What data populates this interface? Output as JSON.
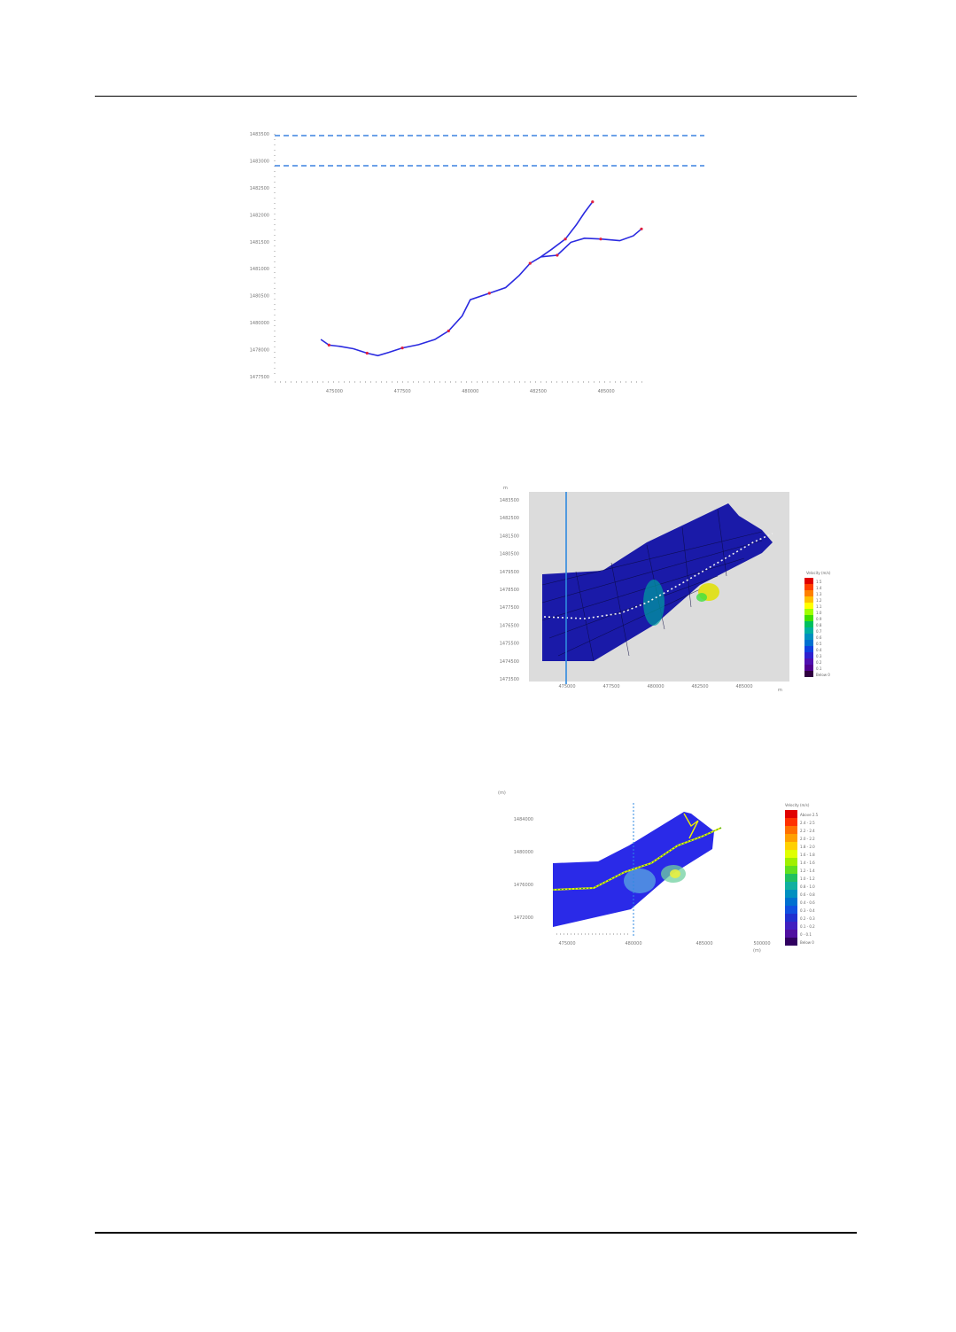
{
  "figures": [
    {
      "id": "fig1",
      "chart_data": {
        "type": "line",
        "title": "",
        "xlabel": "",
        "ylabel": "",
        "x_tick_labels": [
          "475000",
          "477500",
          "480000",
          "482500",
          "485000"
        ],
        "y_tick_labels": [
          "1477500",
          "1478000",
          "1480000",
          "1480500",
          "1481000",
          "1481500",
          "1482000",
          "1482500",
          "1483000",
          "1483500"
        ],
        "reference_lines": [
          "upper limit",
          "lower limit"
        ],
        "series": [
          {
            "values": [
              [
                474500,
                1478420
              ],
              [
                474800,
                1478280
              ],
              [
                475200,
                1478250
              ],
              [
                475700,
                1478190
              ],
              [
                476200,
                1478080
              ],
              [
                476600,
                1478020
              ],
              [
                477000,
                1478100
              ],
              [
                477500,
                1478210
              ],
              [
                478100,
                1478290
              ],
              [
                478700,
                1478420
              ],
              [
                479200,
                1478630
              ],
              [
                479700,
                1479000
              ],
              [
                480000,
                1479400
              ],
              [
                480700,
                1479560
              ],
              [
                481300,
                1479700
              ],
              [
                481800,
                1480000
              ],
              [
                482200,
                1480300
              ],
              [
                482600,
                1480460
              ],
              [
                483000,
                1480650
              ],
              [
                483500,
                1480900
              ],
              [
                483900,
                1481250
              ],
              [
                484200,
                1481550
              ],
              [
                484500,
                1481820
              ]
            ]
          },
          {
            "values": [
              [
                482600,
                1480460
              ],
              [
                483200,
                1480500
              ],
              [
                483700,
                1480820
              ],
              [
                484200,
                1480920
              ],
              [
                484800,
                1480900
              ],
              [
                485500,
                1480860
              ],
              [
                486000,
                1480980
              ],
              [
                486300,
                1481150
              ]
            ]
          }
        ]
      }
    },
    {
      "id": "fig2",
      "chart_data": {
        "type": "heatmap",
        "xlabel": "m",
        "ylabel": "m",
        "x_tick_labels": [
          "475000",
          "477500",
          "480000",
          "482500",
          "485000"
        ],
        "y_tick_labels": [
          "1483500",
          "1482500",
          "1481500",
          "1480500",
          "1479500",
          "1478500",
          "1477500",
          "1476500",
          "1475500",
          "1474500",
          "1473500"
        ],
        "legend_title": "Velocity (m/s)",
        "legend_labels": [
          "1.5",
          "1.4",
          "1.3",
          "1.2",
          "1.1",
          "1.0",
          "0.9",
          "0.8",
          "0.7",
          "0.6",
          "0.5",
          "0.4",
          "0.3",
          "0.2",
          "0.1",
          "Below 0"
        ],
        "legend_colors": [
          "#e00000",
          "#ff4000",
          "#ff8000",
          "#ffc000",
          "#ffff00",
          "#a0ff00",
          "#40e000",
          "#00c060",
          "#00b0a0",
          "#0090c0",
          "#0070d0",
          "#1040e0",
          "#3020d0",
          "#5010b0",
          "#500090",
          "#300040"
        ]
      }
    },
    {
      "id": "fig3",
      "chart_data": {
        "type": "heatmap",
        "xlabel": "(m)",
        "ylabel": "(m)",
        "x_tick_labels": [
          "475000",
          "480000",
          "485000",
          "500000"
        ],
        "y_tick_labels": [
          "1484000",
          "1480000",
          "1476000",
          "1472000"
        ],
        "legend_title": "Velocity (m/s)",
        "legend_labels": [
          "Above 2.5",
          "2.4 - 2.5",
          "2.2 - 2.4",
          "2.0 - 2.2",
          "1.8 - 2.0",
          "1.6 - 1.8",
          "1.4 - 1.6",
          "1.2 - 1.4",
          "1.0 - 1.2",
          "0.8 - 1.0",
          "0.6 - 0.8",
          "0.4 - 0.6",
          "0.3 - 0.4",
          "0.2 - 0.3",
          "0.1 - 0.2",
          "0 - 0.1",
          "Below 0"
        ],
        "legend_colors": [
          "#e00000",
          "#ff3000",
          "#ff7000",
          "#ffa000",
          "#ffd000",
          "#e0ff00",
          "#a0f000",
          "#60e020",
          "#20c060",
          "#10b0a0",
          "#0090c0",
          "#0070d0",
          "#1050e0",
          "#2030d0",
          "#4020c0",
          "#5010a0",
          "#300060"
        ]
      }
    }
  ]
}
